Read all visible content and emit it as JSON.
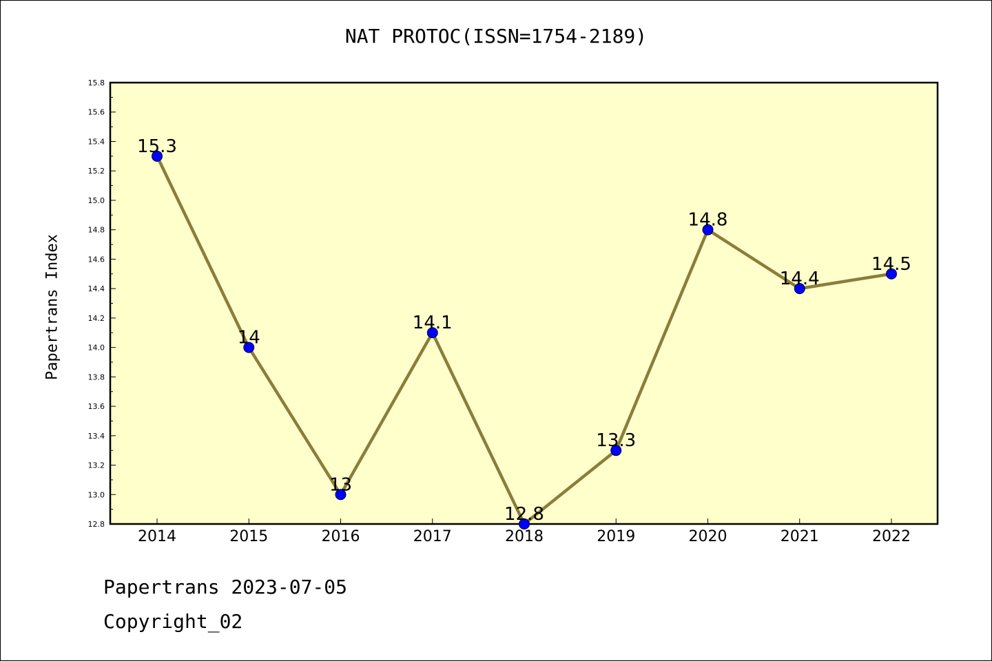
{
  "title": "NAT PROTOC(ISSN=1754-2189)",
  "footer": {
    "line1": "Papertrans 2023-07-05",
    "line2": "Copyright_02"
  },
  "chart_data": {
    "type": "line",
    "title": "NAT PROTOC(ISSN=1754-2189)",
    "ylabel": "Papertrans Index",
    "xlabel": "",
    "categories": [
      "2014",
      "2015",
      "2016",
      "2017",
      "2018",
      "2019",
      "2020",
      "2021",
      "2022"
    ],
    "values": [
      15.3,
      14.0,
      13.0,
      14.1,
      12.8,
      13.3,
      14.8,
      14.4,
      14.5
    ],
    "data_labels": [
      "15.3",
      "14",
      "13",
      "14.1",
      "12.8",
      "13.3",
      "14.8",
      "14.4",
      "14.5"
    ],
    "ylim": [
      12.8,
      15.8
    ],
    "yticks": [
      "12.8",
      "13.0",
      "13.2",
      "13.4",
      "13.6",
      "13.8",
      "14.0",
      "14.2",
      "14.4",
      "14.6",
      "14.8",
      "15.0",
      "15.2",
      "15.4",
      "15.6",
      "15.8"
    ],
    "grid": false,
    "colors": {
      "plot_background": "#ffffcc",
      "line": "#8b7d3a",
      "marker": "#0000ff"
    }
  }
}
